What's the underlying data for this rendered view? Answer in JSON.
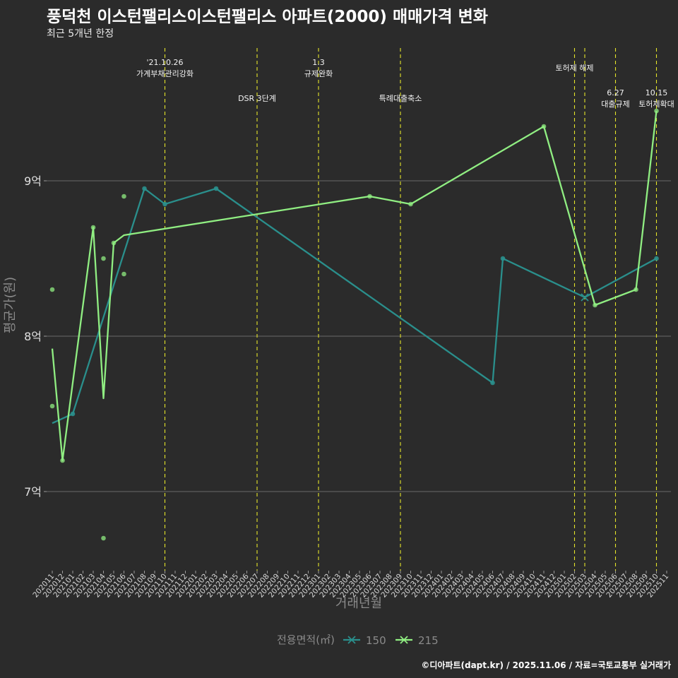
{
  "title": "풍덕천 이스턴팰리스이스턴팰리스 아파트(2000) 매매가격 변화",
  "subtitle": "최근 5개년 한정",
  "caption": "©디아파트(dapt.kr) / 2025.11.06 / 자료=국토교통부 실거래가",
  "chart_data": {
    "type": "line",
    "xlabel": "거래년월",
    "ylabel": "평균가(원)",
    "legend_title": "전용면적(㎡)",
    "ylim": [
      6.6,
      9.85
    ],
    "categories": [
      "202011",
      "202012",
      "202101",
      "202102",
      "202103",
      "202104",
      "202105",
      "202106",
      "202107",
      "202108",
      "202109",
      "202110",
      "202111",
      "202112",
      "202201",
      "202202",
      "202203",
      "202204",
      "202205",
      "202206",
      "202207",
      "202208",
      "202209",
      "202210",
      "202211",
      "202212",
      "202301",
      "202302",
      "202303",
      "202304",
      "202305",
      "202306",
      "202307",
      "202308",
      "202309",
      "202310",
      "202311",
      "202312",
      "202401",
      "202402",
      "202403",
      "202404",
      "202405",
      "202406",
      "202407",
      "202408",
      "202409",
      "202410",
      "202411",
      "202412",
      "202501",
      "202502",
      "202503",
      "202504",
      "202505",
      "202506",
      "202507",
      "202508",
      "202509",
      "202510",
      "202511"
    ],
    "y_ticks": [
      {
        "value": 7,
        "label": "7억"
      },
      {
        "value": 8,
        "label": "8억"
      },
      {
        "value": 9,
        "label": "9억"
      }
    ],
    "series": [
      {
        "name": "150",
        "color": "#2a8f8c",
        "line": [
          {
            "x": "202011",
            "y": 7.44
          },
          {
            "x": "202101",
            "y": 7.5
          },
          {
            "x": "202108",
            "y": 8.95
          },
          {
            "x": "202110",
            "y": 8.85
          },
          {
            "x": "202203",
            "y": 8.95
          },
          {
            "x": "202406",
            "y": 7.7
          },
          {
            "x": "202407",
            "y": 8.5
          },
          {
            "x": "202503",
            "y": 8.25
          },
          {
            "x": "202510",
            "y": 8.5
          }
        ],
        "points": [
          {
            "x": "202101",
            "y": 7.5
          },
          {
            "x": "202108",
            "y": 8.95
          },
          {
            "x": "202110",
            "y": 8.85
          },
          {
            "x": "202203",
            "y": 8.95
          },
          {
            "x": "202406",
            "y": 7.7
          },
          {
            "x": "202407",
            "y": 8.5
          },
          {
            "x": "202510",
            "y": 8.5
          }
        ],
        "cross_points": [
          {
            "x": "202503",
            "y": 8.25
          }
        ]
      },
      {
        "name": "215",
        "color": "#90ee82",
        "line": [
          {
            "x": "202011",
            "y": 7.92
          },
          {
            "x": "202012",
            "y": 7.2
          },
          {
            "x": "202103",
            "y": 8.7
          },
          {
            "x": "202104",
            "y": 7.6
          },
          {
            "x": "202105",
            "y": 8.6
          },
          {
            "x": "202106",
            "y": 8.65
          },
          {
            "x": "202306",
            "y": 8.9
          },
          {
            "x": "202310",
            "y": 8.85
          },
          {
            "x": "202411",
            "y": 9.35
          },
          {
            "x": "202504",
            "y": 8.2
          },
          {
            "x": "202508",
            "y": 8.3
          },
          {
            "x": "202510",
            "y": 9.45
          }
        ],
        "points": [
          {
            "x": "202011",
            "y": 8.3
          },
          {
            "x": "202011",
            "y": 7.55
          },
          {
            "x": "202012",
            "y": 7.2
          },
          {
            "x": "202103",
            "y": 8.7
          },
          {
            "x": "202104",
            "y": 8.5
          },
          {
            "x": "202104",
            "y": 6.7
          },
          {
            "x": "202105",
            "y": 8.6
          },
          {
            "x": "202106",
            "y": 8.9
          },
          {
            "x": "202106",
            "y": 8.4
          },
          {
            "x": "202306",
            "y": 8.9
          },
          {
            "x": "202310",
            "y": 8.85
          },
          {
            "x": "202411",
            "y": 9.35
          },
          {
            "x": "202504",
            "y": 8.2
          },
          {
            "x": "202508",
            "y": 8.3
          },
          {
            "x": "202510",
            "y": 9.45
          }
        ]
      }
    ],
    "events": [
      {
        "x": "202110",
        "lines": [
          "'21.10.26",
          "가계부채관리강화"
        ],
        "level": 1
      },
      {
        "x": "202207",
        "lines": [
          "DSR 3단계"
        ],
        "level": 2
      },
      {
        "x": "202301",
        "lines": [
          "1.3",
          "규제완화"
        ],
        "level": 1
      },
      {
        "x": "202309",
        "lines": [
          "특례대출축소"
        ],
        "level": 2
      },
      {
        "x": "202502",
        "lines": [
          "토허제 해제"
        ],
        "level": 0
      },
      {
        "x": "202503",
        "lines": [],
        "level": 0
      },
      {
        "x": "202506",
        "lines": [
          "6.27",
          "대출규제"
        ],
        "level": 3
      },
      {
        "x": "202510",
        "lines": [
          "10.15",
          "토허제확대"
        ],
        "level": 3
      }
    ]
  }
}
